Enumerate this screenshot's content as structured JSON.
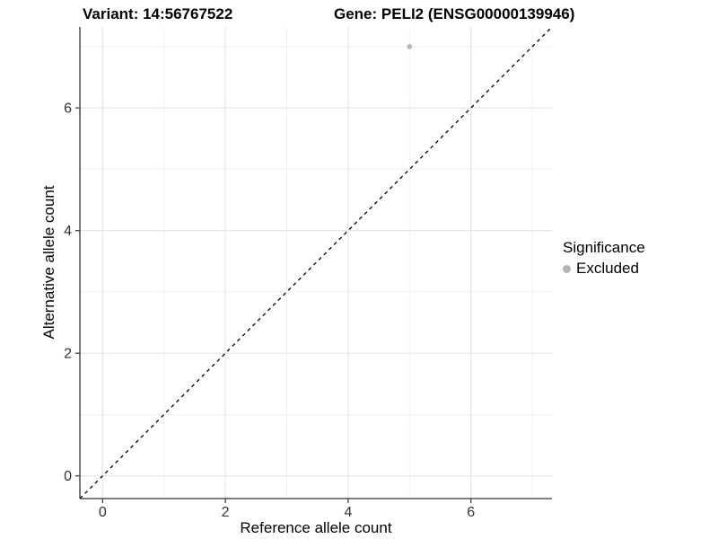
{
  "titles": {
    "variant": "Variant: 14:56767522",
    "gene": "Gene: PELI2 (ENSG00000139946)"
  },
  "axes": {
    "x_label": "Reference allele count",
    "y_label": "Alternative allele count"
  },
  "legend": {
    "title": "Significance",
    "items": [
      {
        "label": "Excluded",
        "color": "#b5b5b5"
      }
    ]
  },
  "colors": {
    "point": "#b5b5b5",
    "major_grid": "#e6e6e6",
    "minor_grid": "#f0f0f0",
    "axis_line": "#333333",
    "tick_label": "#333333",
    "reference_line": "#000000"
  },
  "chart_data": {
    "type": "scatter",
    "title": "Variant: 14:56767522   Gene: PELI2 (ENSG00000139946)",
    "xlabel": "Reference allele count",
    "ylabel": "Alternative allele count",
    "xlim": [
      -0.37,
      7.32
    ],
    "ylim": [
      -0.37,
      7.32
    ],
    "x_ticks": [
      0,
      2,
      4,
      6
    ],
    "y_ticks": [
      0,
      2,
      4,
      6
    ],
    "x_minor_gridlines": [
      1,
      3,
      5,
      7
    ],
    "y_minor_gridlines": [
      1,
      3,
      5,
      7
    ],
    "grid": true,
    "legend_position": "right",
    "series": [
      {
        "name": "Excluded",
        "color": "#b5b5b5",
        "points": [
          {
            "x": 5,
            "y": 7
          }
        ]
      }
    ],
    "reference_line": {
      "type": "identity",
      "slope": 1,
      "intercept": 0,
      "style": "dashed",
      "color": "#000000"
    }
  }
}
